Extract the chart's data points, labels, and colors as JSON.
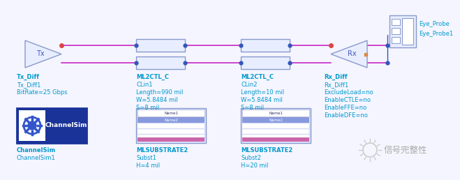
{
  "bg_color": "#f5f5ff",
  "wire_color": "#cc44cc",
  "node_color": "#3355bb",
  "comp_outline": "#8899cc",
  "comp_fill": "#e8eeff",
  "text_cyan": "#0099cc",
  "text_blue": "#4455bb",
  "white": "#ffffff",
  "tx_label": [
    "Tx_Diff",
    "Tx_Diff1",
    "BitRate=25 Gbps"
  ],
  "ml1_label": [
    "ML2CTL_C",
    "CLin1",
    "Length=990 mil",
    "W=5.8484 mil",
    "S=8 mil"
  ],
  "ml2_label": [
    "ML2CTL_C",
    "CLin2",
    "Length=10 mil",
    "W=5.8484 mil",
    "S=8 mil"
  ],
  "rx_label": [
    "Rx_Diff",
    "Rx_Diff1",
    "ExcludeLoad=no",
    "EnableCTLE=no",
    "EnableFFE=no",
    "EnableDFE=no"
  ],
  "eye_label": [
    "Eye_Probe",
    "Eye_Probe1"
  ],
  "cs_label": [
    "ChannelSim",
    "ChannelSim1"
  ],
  "sub1_label": [
    "MLSUBSTRATE2",
    "Subst1",
    "H=4 mil"
  ],
  "sub2_label": [
    "MLSUBSTRATE2",
    "Subst2",
    "H=20 mil"
  ],
  "logo_text": "信号完整性"
}
